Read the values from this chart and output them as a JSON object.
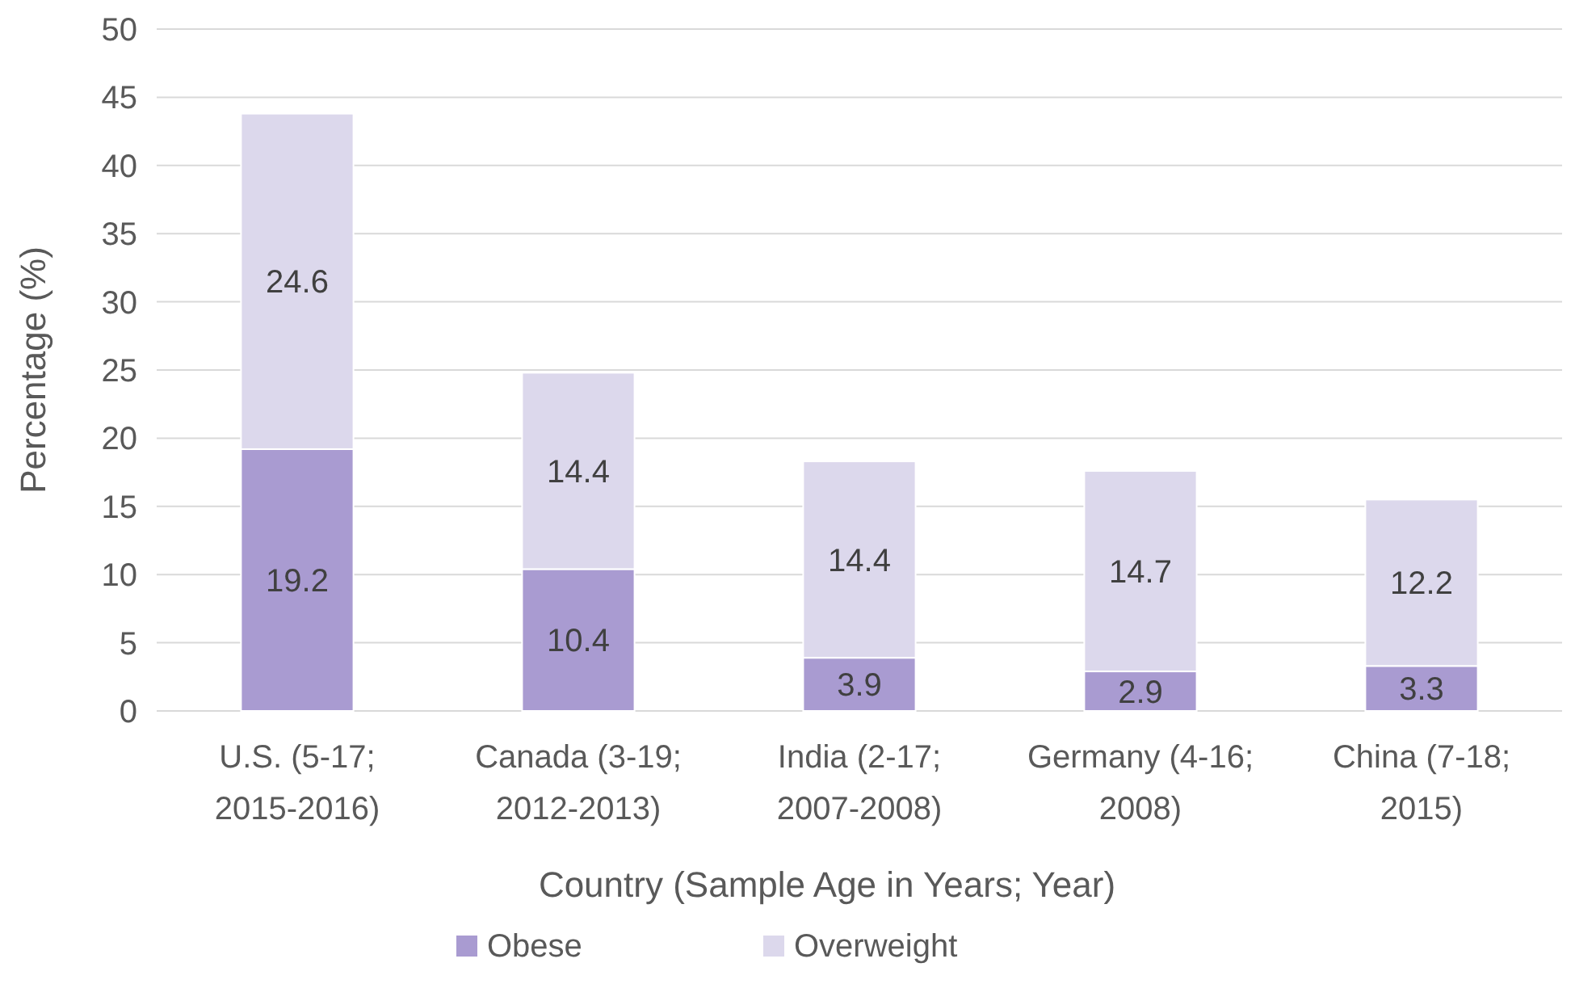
{
  "chart_data": {
    "type": "bar",
    "stacked": true,
    "xlabel": "Country (Sample Age in Years; Year)",
    "ylabel": "Percentage (%)",
    "categories": [
      "U.S. (5-17; 2015-2016)",
      "Canada (3-19; 2012-2013)",
      "India (2-17; 2007-2008)",
      "Germany (4-16; 2008)",
      "China (7-18; 2015)"
    ],
    "series": [
      {
        "name": "Obese",
        "color": "#a99bd1",
        "values": [
          19.2,
          10.4,
          3.9,
          2.9,
          3.3
        ]
      },
      {
        "name": "Overweight",
        "color": "#dcd8ec",
        "values": [
          24.6,
          14.4,
          14.4,
          14.7,
          12.2
        ]
      }
    ],
    "ylim": [
      0,
      50
    ],
    "yticks": [
      0,
      5,
      10,
      15,
      20,
      25,
      30,
      35,
      40,
      45,
      50
    ],
    "grid": "y",
    "legend": "bottom",
    "data_labels": true
  }
}
